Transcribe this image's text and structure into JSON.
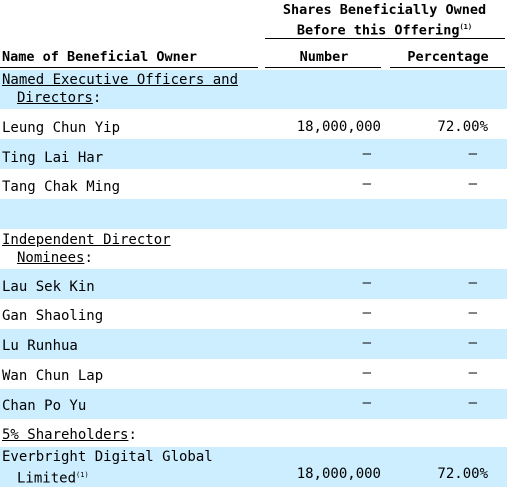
{
  "header": {
    "group_line1": "Shares  Beneficially  Owned",
    "group_line2": "Before this Offering",
    "group_footnote": "(1)",
    "col_name": "Name of Beneficial Owner",
    "col_number": "Number",
    "col_percentage": "Percentage"
  },
  "sections": {
    "named_line1": "Named Executive Officers and",
    "named_line2": "Directors",
    "named_colon": ":",
    "independent_line1": "Independent Director",
    "independent_line2": "Nominees",
    "independent_colon": ":",
    "five_pct": "5% Shareholders",
    "five_pct_colon": ":"
  },
  "rows": [
    {
      "name": "Leung Chun Yip",
      "number": "18,000,000",
      "percentage": "72.00%"
    },
    {
      "name": "Ting Lai Har",
      "number": "—",
      "percentage": "—"
    },
    {
      "name": "Tang Chak Ming",
      "number": "—",
      "percentage": "—"
    },
    {
      "name": "Lau Sek Kin",
      "number": "—",
      "percentage": "—"
    },
    {
      "name": "Gan Shaoling",
      "number": "—",
      "percentage": "—"
    },
    {
      "name": "Lu Runhua",
      "number": "—",
      "percentage": "—"
    },
    {
      "name": "Wan Chun Lap",
      "number": "—",
      "percentage": "—"
    },
    {
      "name": "Chan Po Yu",
      "number": "—",
      "percentage": "—"
    }
  ],
  "shareholder": {
    "name_line1": "Everbright Digital Global",
    "name_line2": "Limited",
    "footnote": "(1)",
    "number": "18,000,000",
    "percentage": "72.00%"
  }
}
